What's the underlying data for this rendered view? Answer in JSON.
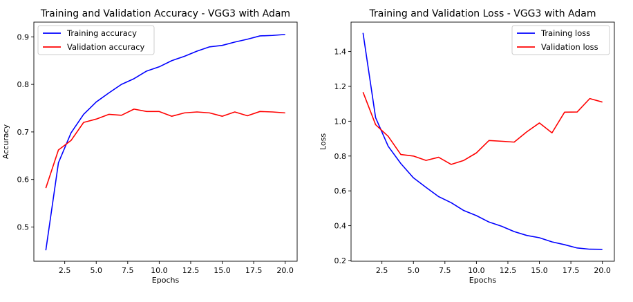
{
  "chart_data": [
    {
      "type": "line",
      "title": "Training and Validation Accuracy - VGG3 with Adam",
      "xlabel": "Epochs",
      "ylabel": "Accuracy",
      "xlim": [
        0.05,
        20.95
      ],
      "ylim": [
        0.428,
        0.931
      ],
      "xticks": [
        2.5,
        5.0,
        7.5,
        10.0,
        12.5,
        15.0,
        17.5,
        20.0
      ],
      "xtick_labels": [
        "2.5",
        "5.0",
        "7.5",
        "10.0",
        "12.5",
        "15.0",
        "17.5",
        "20.0"
      ],
      "yticks": [
        0.5,
        0.6,
        0.7,
        0.8,
        0.9
      ],
      "ytick_labels": [
        "0.5",
        "0.6",
        "0.7",
        "0.8",
        "0.9"
      ],
      "legend_position": "top-left",
      "grid": false,
      "x": [
        1,
        2,
        3,
        4,
        5,
        6,
        7,
        8,
        9,
        10,
        11,
        12,
        13,
        14,
        15,
        16,
        17,
        18,
        19,
        20
      ],
      "series": [
        {
          "name": "Training accuracy",
          "color": "#0000ff",
          "values": [
            0.451,
            0.635,
            0.698,
            0.737,
            0.763,
            0.782,
            0.8,
            0.812,
            0.828,
            0.837,
            0.85,
            0.859,
            0.87,
            0.879,
            0.882,
            0.889,
            0.895,
            0.902,
            0.903,
            0.905
          ]
        },
        {
          "name": "Validation accuracy",
          "color": "#ff0000",
          "values": [
            0.582,
            0.662,
            0.682,
            0.72,
            0.727,
            0.737,
            0.735,
            0.748,
            0.743,
            0.743,
            0.733,
            0.74,
            0.742,
            0.74,
            0.733,
            0.742,
            0.734,
            0.743,
            0.742,
            0.74
          ]
        }
      ]
    },
    {
      "type": "line",
      "title": "Training and Validation Loss - VGG3 with Adam",
      "xlabel": "Epochs",
      "ylabel": "Loss",
      "xlim": [
        0.05,
        20.95
      ],
      "ylim": [
        0.196,
        1.569
      ],
      "xticks": [
        2.5,
        5.0,
        7.5,
        10.0,
        12.5,
        15.0,
        17.5,
        20.0
      ],
      "xtick_labels": [
        "2.5",
        "5.0",
        "7.5",
        "10.0",
        "12.5",
        "15.0",
        "17.5",
        "20.0"
      ],
      "yticks": [
        0.2,
        0.4,
        0.6,
        0.8,
        1.0,
        1.2,
        1.4
      ],
      "ytick_labels": [
        "0.2",
        "0.4",
        "0.6",
        "0.8",
        "1.0",
        "1.2",
        "1.4"
      ],
      "legend_position": "top-right",
      "grid": false,
      "x": [
        1,
        2,
        3,
        4,
        5,
        6,
        7,
        8,
        9,
        10,
        11,
        12,
        13,
        14,
        15,
        16,
        17,
        18,
        19,
        20
      ],
      "series": [
        {
          "name": "Training loss",
          "color": "#0000ff",
          "values": [
            1.507,
            1.02,
            0.856,
            0.757,
            0.675,
            0.62,
            0.567,
            0.532,
            0.487,
            0.458,
            0.421,
            0.397,
            0.366,
            0.344,
            0.331,
            0.307,
            0.291,
            0.272,
            0.265,
            0.264
          ]
        },
        {
          "name": "Validation loss",
          "color": "#ff0000",
          "values": [
            1.167,
            0.98,
            0.913,
            0.809,
            0.8,
            0.775,
            0.793,
            0.752,
            0.775,
            0.818,
            0.889,
            0.885,
            0.88,
            0.939,
            0.99,
            0.933,
            1.052,
            1.053,
            1.13,
            1.11
          ]
        }
      ]
    }
  ]
}
